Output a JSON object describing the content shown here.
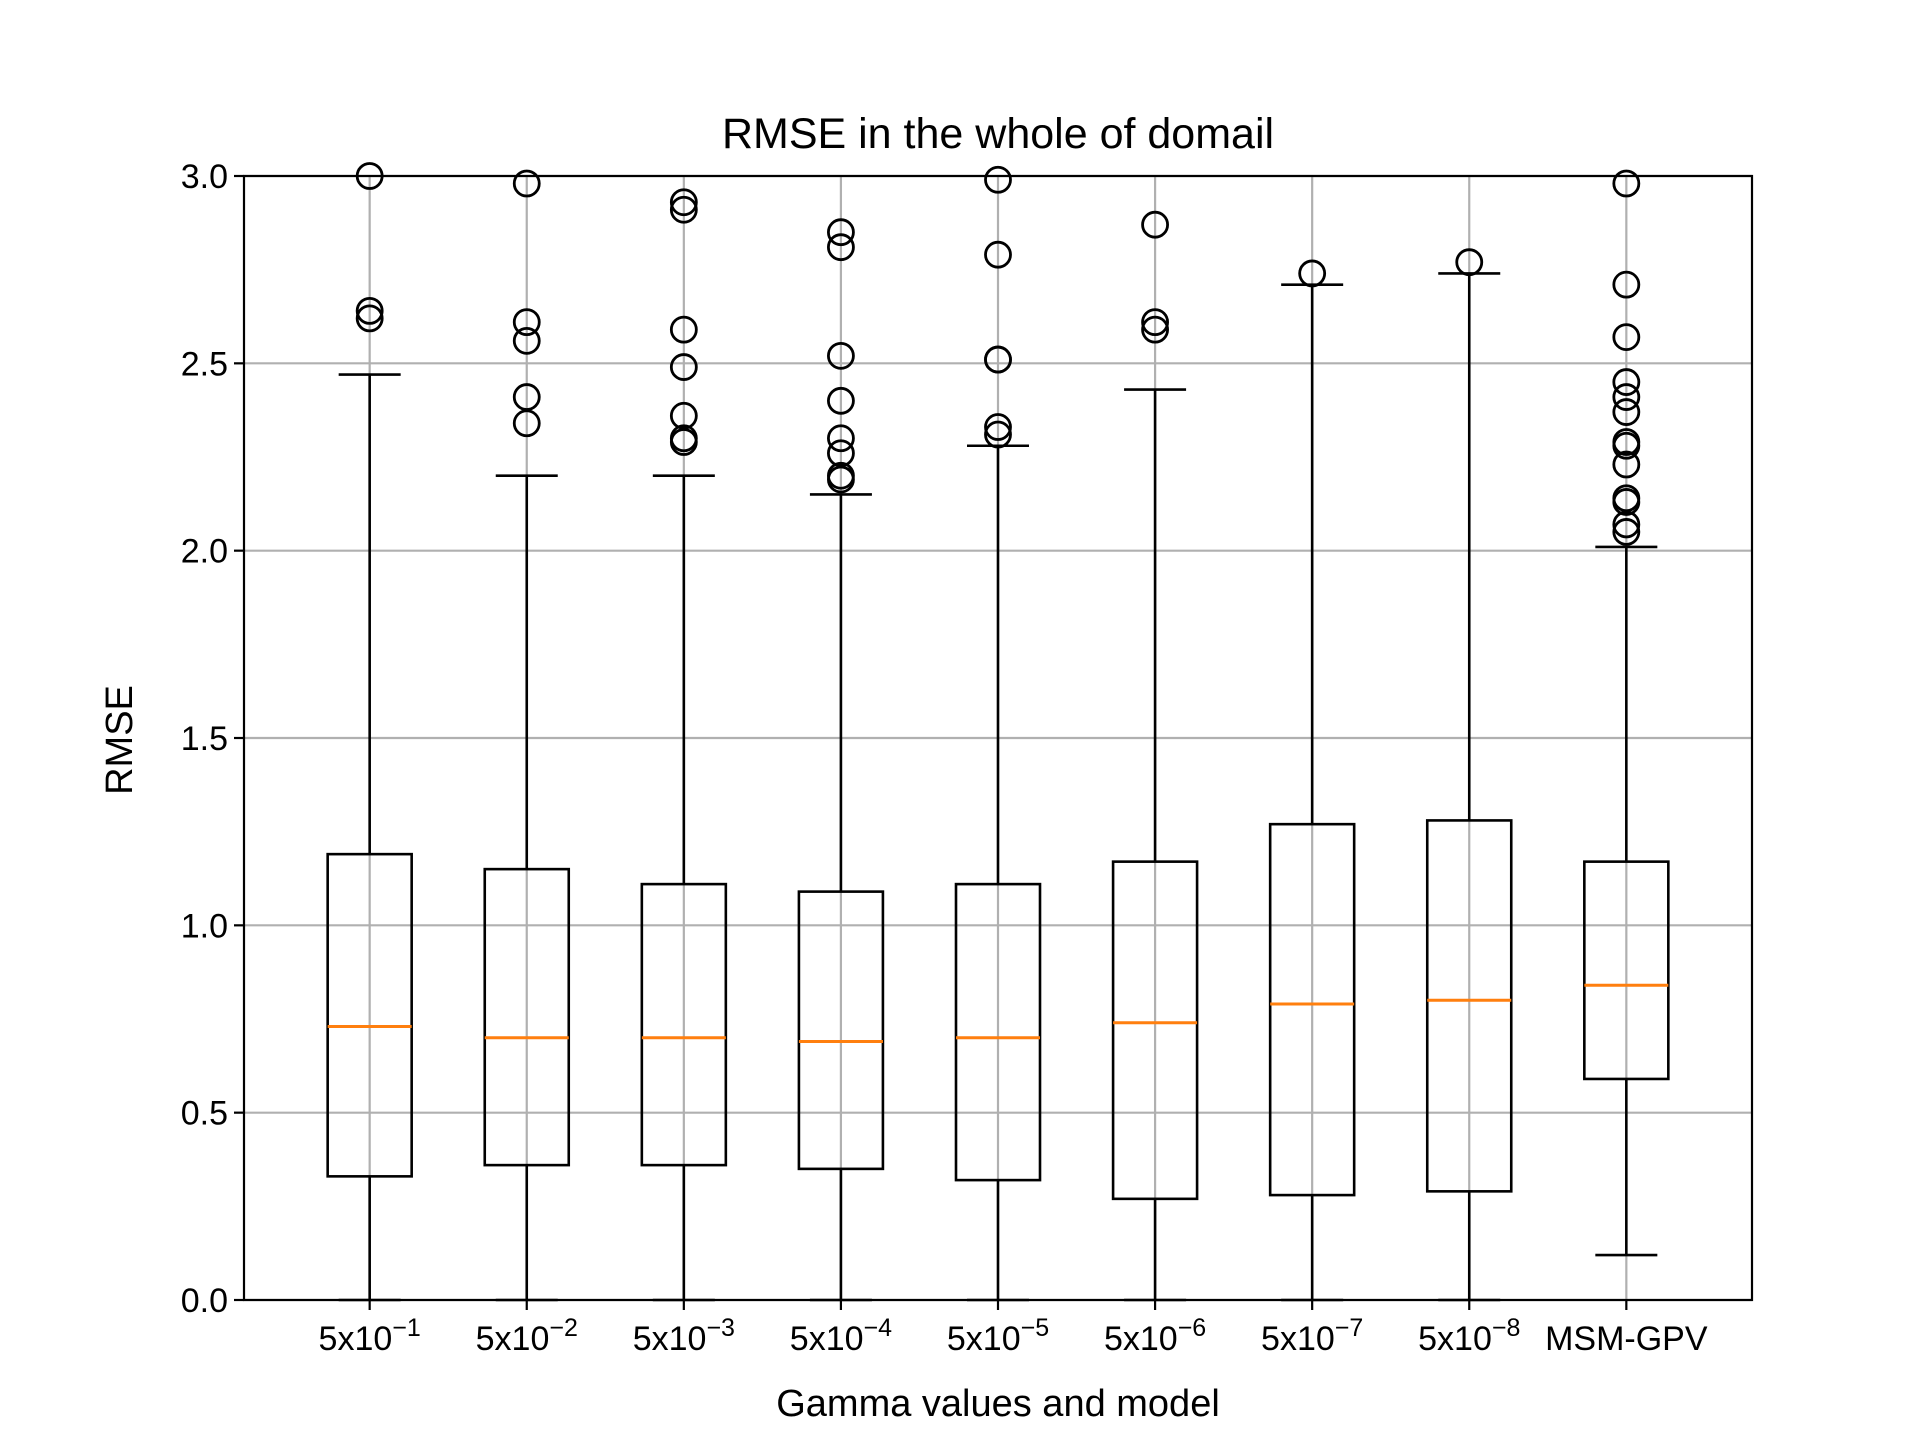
{
  "chart_data": {
    "type": "boxplot",
    "title": "RMSE in the whole of domail",
    "xlabel": "Gamma values and model",
    "ylabel": "RMSE",
    "ylim": [
      0.0,
      3.0
    ],
    "yticks": [
      "0.0",
      "0.5",
      "1.0",
      "1.5",
      "2.0",
      "2.5",
      "3.0"
    ],
    "grid": true,
    "colors": {
      "box": "#000000",
      "median": "#ff7f0e",
      "grid": "#b0b0b0"
    },
    "categories": [
      {
        "base": "5x10",
        "exp": "−1"
      },
      {
        "base": "5x10",
        "exp": "−2"
      },
      {
        "base": "5x10",
        "exp": "−3"
      },
      {
        "base": "5x10",
        "exp": "−4"
      },
      {
        "base": "5x10",
        "exp": "−5"
      },
      {
        "base": "5x10",
        "exp": "−6"
      },
      {
        "base": "5x10",
        "exp": "−7"
      },
      {
        "base": "5x10",
        "exp": "−8"
      },
      {
        "base": "MSM-GPV",
        "exp": ""
      }
    ],
    "boxes": [
      {
        "whislo": 0.0,
        "q1": 0.33,
        "med": 0.73,
        "q3": 1.19,
        "whishi": 2.47,
        "fliers": [
          2.62,
          2.64,
          3.0
        ]
      },
      {
        "whislo": 0.0,
        "q1": 0.36,
        "med": 0.7,
        "q3": 1.15,
        "whishi": 2.2,
        "fliers": [
          2.34,
          2.41,
          2.56,
          2.61,
          2.98
        ]
      },
      {
        "whislo": 0.0,
        "q1": 0.36,
        "med": 0.7,
        "q3": 1.11,
        "whishi": 2.2,
        "fliers": [
          2.29,
          2.3,
          2.36,
          2.49,
          2.59,
          2.91,
          2.93
        ]
      },
      {
        "whislo": 0.0,
        "q1": 0.35,
        "med": 0.69,
        "q3": 1.09,
        "whishi": 2.15,
        "fliers": [
          2.19,
          2.2,
          2.26,
          2.3,
          2.4,
          2.52,
          2.81,
          2.85
        ]
      },
      {
        "whislo": 0.0,
        "q1": 0.32,
        "med": 0.7,
        "q3": 1.11,
        "whishi": 2.28,
        "fliers": [
          2.31,
          2.33,
          2.51,
          2.51,
          2.79,
          2.99
        ]
      },
      {
        "whislo": 0.0,
        "q1": 0.27,
        "med": 0.74,
        "q3": 1.17,
        "whishi": 2.43,
        "fliers": [
          2.59,
          2.61,
          2.87
        ]
      },
      {
        "whislo": 0.0,
        "q1": 0.28,
        "med": 0.79,
        "q3": 1.27,
        "whishi": 2.71,
        "fliers": [
          2.74
        ]
      },
      {
        "whislo": 0.0,
        "q1": 0.29,
        "med": 0.8,
        "q3": 1.28,
        "whishi": 2.74,
        "fliers": [
          2.77
        ]
      },
      {
        "whislo": 0.12,
        "q1": 0.59,
        "med": 0.84,
        "q3": 1.17,
        "whishi": 2.01,
        "fliers": [
          2.05,
          2.07,
          2.13,
          2.14,
          2.23,
          2.28,
          2.29,
          2.37,
          2.41,
          2.45,
          2.57,
          2.71,
          2.98
        ]
      }
    ]
  }
}
